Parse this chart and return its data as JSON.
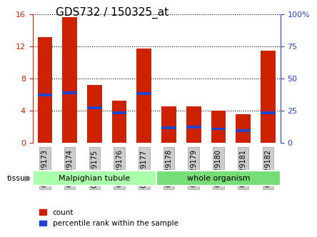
{
  "title": "GDS732 / 150325_at",
  "categories": [
    "GSM29173",
    "GSM29174",
    "GSM29175",
    "GSM29176",
    "GSM29177",
    "GSM29178",
    "GSM29179",
    "GSM29180",
    "GSM29181",
    "GSM29182"
  ],
  "red_values": [
    13.2,
    15.7,
    7.2,
    5.2,
    11.7,
    4.5,
    4.5,
    4.0,
    3.5,
    11.5
  ],
  "blue_values": [
    5.9,
    6.2,
    4.3,
    3.7,
    6.1,
    1.8,
    1.9,
    1.7,
    1.5,
    3.7
  ],
  "ylim_left": [
    0,
    16
  ],
  "ylim_right": [
    0,
    100
  ],
  "yticks_left": [
    0,
    4,
    8,
    12,
    16
  ],
  "yticks_right": [
    0,
    25,
    50,
    75,
    100
  ],
  "ytick_labels_right": [
    "0",
    "25",
    "50",
    "75",
    "100%"
  ],
  "groups": [
    {
      "label": "Malpighian tubule",
      "start": 0,
      "end": 5,
      "color": "#aaffaa"
    },
    {
      "label": "whole organism",
      "start": 5,
      "end": 10,
      "color": "#77dd77"
    }
  ],
  "tissue_label": "tissue",
  "bar_width": 0.6,
  "red_color": "#cc2200",
  "blue_color": "#2244cc",
  "legend_items": [
    "count",
    "percentile rank within the sample"
  ],
  "bg_plot": "#ffffff",
  "grid_color": "#000000",
  "tick_bg": "#cccccc",
  "left_axis_color": "#cc2200",
  "right_axis_color": "#2244cc"
}
